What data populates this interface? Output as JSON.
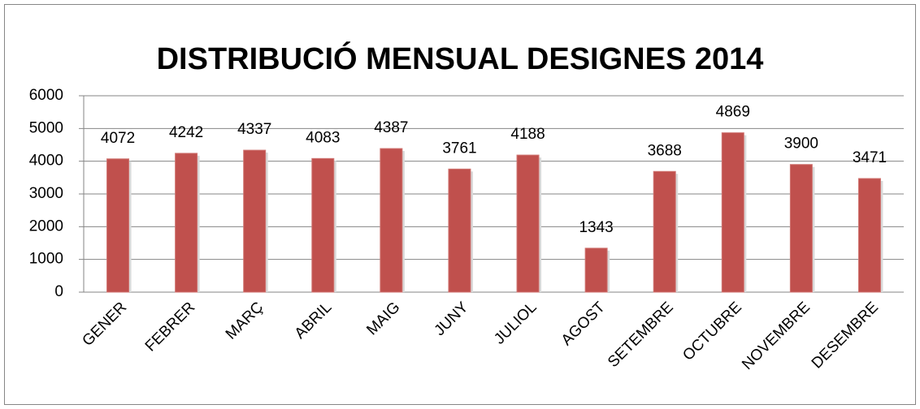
{
  "chart_data": {
    "type": "bar",
    "title": "DISTRIBUCIÓ MENSUAL DESIGNES 2014",
    "categories": [
      "GENER",
      "FEBRER",
      "MARÇ",
      "ABRIL",
      "MAIG",
      "JUNY",
      "JULIOL",
      "AGOST",
      "SETEMBRE",
      "OCTUBRE",
      "NOVEMBRE",
      "DESEMBRE"
    ],
    "values": [
      4072,
      4242,
      4337,
      4083,
      4387,
      3761,
      4188,
      1343,
      3688,
      4869,
      3900,
      3471
    ],
    "color": "#c0504d",
    "ylim": [
      0,
      6000
    ],
    "yticks": [
      0,
      1000,
      2000,
      3000,
      4000,
      5000,
      6000
    ],
    "grid": true
  }
}
